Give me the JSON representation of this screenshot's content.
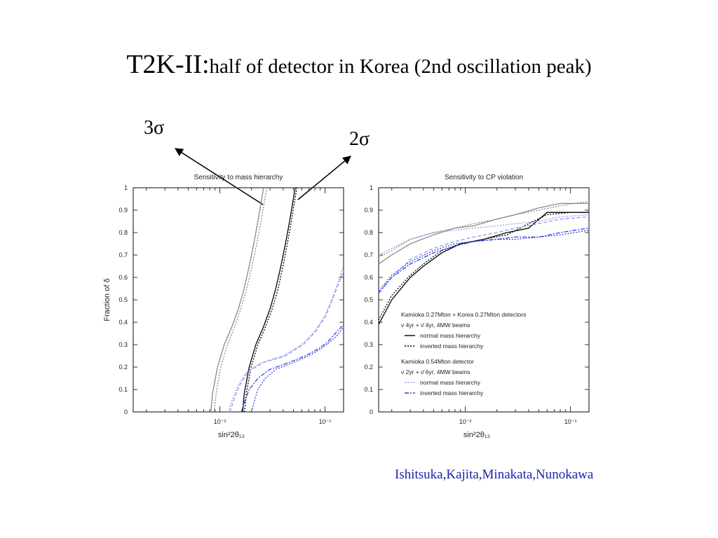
{
  "slide": {
    "title_main": "T2K-II:",
    "title_rest": "half of detector in Korea (2nd oscillation peak)",
    "sigma3": "3σ",
    "sigma2": "2σ",
    "credit": "Ishitsuka,Kajita,Minakata,Nunokawa"
  },
  "colors": {
    "black": "#000000",
    "gray": "#888888",
    "blue": "#2f3fdd",
    "lightblue": "#8f99f2"
  },
  "chart_data": [
    {
      "type": "line",
      "title": "Sensitivity to mass hierarchy",
      "xlabel": "sin²2θ₁₃",
      "ylabel": "Fraction of δ",
      "xscale": "log",
      "xlim": [
        0.0015,
        0.15
      ],
      "ylim": [
        0,
        1
      ],
      "yticks": [
        "0",
        "0.1",
        "0.2",
        "0.3",
        "0.4",
        "0.5",
        "0.6",
        "0.7",
        "0.8",
        "0.9",
        "1"
      ],
      "xticks": [
        {
          "value": 0.01,
          "label": "10⁻²"
        },
        {
          "value": 0.1,
          "label": "10⁻¹"
        }
      ],
      "series": [
        {
          "color": "gray",
          "dash": "solid",
          "x": [
            0.0082,
            0.0085,
            0.0095,
            0.011,
            0.013,
            0.015,
            0.017,
            0.019,
            0.021,
            0.023,
            0.025,
            0.026
          ],
          "y": [
            0,
            0.08,
            0.2,
            0.3,
            0.38,
            0.46,
            0.55,
            0.65,
            0.75,
            0.85,
            0.95,
            1.0
          ]
        },
        {
          "color": "gray",
          "dash": "dot",
          "x": [
            0.0088,
            0.0092,
            0.0102,
            0.0118,
            0.0138,
            0.0158,
            0.018,
            0.0202,
            0.0224,
            0.0246,
            0.0268,
            0.028
          ],
          "y": [
            0,
            0.08,
            0.2,
            0.3,
            0.38,
            0.46,
            0.55,
            0.65,
            0.75,
            0.85,
            0.95,
            1.0
          ]
        },
        {
          "color": "black",
          "dash": "solid",
          "x": [
            0.0165,
            0.017,
            0.019,
            0.022,
            0.026,
            0.03,
            0.034,
            0.038,
            0.042,
            0.046,
            0.05,
            0.052
          ],
          "y": [
            0,
            0.08,
            0.2,
            0.3,
            0.38,
            0.46,
            0.55,
            0.65,
            0.75,
            0.85,
            0.95,
            1.0
          ]
        },
        {
          "color": "black",
          "dash": "dot",
          "x": [
            0.0172,
            0.0178,
            0.0198,
            0.023,
            0.0272,
            0.0315,
            0.0358,
            0.0398,
            0.0438,
            0.0478,
            0.0518,
            0.054
          ],
          "y": [
            0,
            0.08,
            0.2,
            0.3,
            0.38,
            0.46,
            0.55,
            0.65,
            0.75,
            0.85,
            0.95,
            1.0
          ]
        },
        {
          "color": "lightblue",
          "dash": "dot",
          "x": [
            0.012,
            0.013,
            0.015,
            0.018,
            0.025,
            0.04,
            0.06,
            0.08,
            0.1,
            0.12,
            0.15
          ],
          "y": [
            0,
            0.05,
            0.12,
            0.18,
            0.22,
            0.25,
            0.3,
            0.36,
            0.43,
            0.52,
            0.65
          ]
        },
        {
          "color": "lightblue",
          "dash": "dash",
          "x": [
            0.0125,
            0.0135,
            0.0155,
            0.0185,
            0.026,
            0.042,
            0.062,
            0.082,
            0.102,
            0.122,
            0.15
          ],
          "y": [
            0,
            0.05,
            0.12,
            0.18,
            0.22,
            0.25,
            0.3,
            0.36,
            0.43,
            0.52,
            0.63
          ]
        },
        {
          "color": "blue",
          "dash": "dashdot",
          "x": [
            0.016,
            0.017,
            0.019,
            0.023,
            0.03,
            0.045,
            0.065,
            0.085,
            0.105,
            0.125,
            0.15
          ],
          "y": [
            0,
            0.04,
            0.1,
            0.15,
            0.19,
            0.22,
            0.25,
            0.28,
            0.31,
            0.35,
            0.39
          ]
        },
        {
          "color": "blue",
          "dash": "dot",
          "x": [
            0.02,
            0.021,
            0.023,
            0.027,
            0.034,
            0.05,
            0.07,
            0.09,
            0.11,
            0.13,
            0.15
          ],
          "y": [
            0,
            0.04,
            0.1,
            0.15,
            0.19,
            0.22,
            0.25,
            0.28,
            0.31,
            0.34,
            0.38
          ]
        }
      ]
    },
    {
      "type": "line",
      "title": "Sensitivity to CP violation",
      "xlabel": "sin²2θ₁₃",
      "ylabel": "",
      "xscale": "log",
      "xlim": [
        0.0015,
        0.15
      ],
      "ylim": [
        0,
        1
      ],
      "yticks": [
        "0",
        "0.1",
        "0.2",
        "0.3",
        "0.4",
        "0.5",
        "0.6",
        "0.7",
        "0.8",
        "0.9",
        "1"
      ],
      "xticks": [
        {
          "value": 0.01,
          "label": "10⁻²"
        },
        {
          "value": 0.1,
          "label": "10⁻¹"
        }
      ],
      "legend": {
        "position": "lower-right",
        "groups": [
          {
            "header": [
              "Kamioka 0.27Mton + Korea 0.27Mton detectors",
              "ν 4yr + ν̄ 4yr, 4MW beams"
            ],
            "items": [
              {
                "label": "normal mass hierarchy",
                "color": "black",
                "dash": "solid"
              },
              {
                "label": "inverted mass hierarchy",
                "color": "black",
                "dash": "dot"
              }
            ]
          },
          {
            "header": [
              "Kamioka 0.54Mton detector",
              "ν 2yr + ν̄ 6yr, 4MW beams"
            ],
            "items": [
              {
                "label": "normal mass hierarchy",
                "color": "lightblue",
                "dash": "dot"
              },
              {
                "label": "inverted mass hierarchy",
                "color": "blue",
                "dash": "dashdot"
              }
            ]
          }
        ]
      },
      "series": [
        {
          "color": "gray",
          "dash": "solid",
          "x": [
            0.0015,
            0.002,
            0.003,
            0.005,
            0.008,
            0.012,
            0.02,
            0.03,
            0.05,
            0.08,
            0.15
          ],
          "y": [
            0.66,
            0.7,
            0.75,
            0.79,
            0.82,
            0.83,
            0.86,
            0.88,
            0.91,
            0.93,
            0.93
          ]
        },
        {
          "color": "gray",
          "dash": "dot",
          "x": [
            0.0015,
            0.002,
            0.003,
            0.005,
            0.008,
            0.012,
            0.02,
            0.03,
            0.05,
            0.08,
            0.15
          ],
          "y": [
            0.69,
            0.72,
            0.77,
            0.8,
            0.82,
            0.84,
            0.86,
            0.88,
            0.9,
            0.92,
            0.94
          ]
        },
        {
          "color": "black",
          "dash": "solid",
          "x": [
            0.0015,
            0.002,
            0.003,
            0.004,
            0.006,
            0.009,
            0.015,
            0.025,
            0.04,
            0.06,
            0.1,
            0.15
          ],
          "y": [
            0.39,
            0.5,
            0.6,
            0.65,
            0.71,
            0.75,
            0.77,
            0.8,
            0.82,
            0.89,
            0.89,
            0.89
          ]
        },
        {
          "color": "black",
          "dash": "dot",
          "x": [
            0.0015,
            0.002,
            0.003,
            0.004,
            0.006,
            0.009,
            0.015,
            0.025,
            0.04,
            0.06,
            0.1,
            0.15
          ],
          "y": [
            0.41,
            0.52,
            0.61,
            0.66,
            0.72,
            0.75,
            0.77,
            0.79,
            0.84,
            0.88,
            0.89,
            0.89
          ]
        },
        {
          "color": "lightblue",
          "dash": "dot",
          "x": [
            0.0015,
            0.002,
            0.003,
            0.005,
            0.008,
            0.012,
            0.02,
            0.03,
            0.05,
            0.08,
            0.15
          ],
          "y": [
            0.7,
            0.73,
            0.77,
            0.8,
            0.81,
            0.82,
            0.83,
            0.84,
            0.85,
            0.87,
            0.88
          ]
        },
        {
          "color": "lightblue",
          "dash": "dash",
          "x": [
            0.0015,
            0.002,
            0.003,
            0.005,
            0.008,
            0.012,
            0.02,
            0.03,
            0.05,
            0.08,
            0.15
          ],
          "y": [
            0.53,
            0.6,
            0.68,
            0.73,
            0.76,
            0.78,
            0.8,
            0.82,
            0.84,
            0.86,
            0.87
          ]
        },
        {
          "color": "blue",
          "dash": "dashdot",
          "x": [
            0.0015,
            0.002,
            0.003,
            0.005,
            0.008,
            0.012,
            0.02,
            0.03,
            0.05,
            0.08,
            0.15
          ],
          "y": [
            0.53,
            0.6,
            0.66,
            0.71,
            0.74,
            0.76,
            0.77,
            0.78,
            0.78,
            0.8,
            0.82
          ]
        },
        {
          "color": "blue",
          "dash": "dot",
          "x": [
            0.0015,
            0.002,
            0.003,
            0.005,
            0.008,
            0.012,
            0.02,
            0.03,
            0.05,
            0.08,
            0.15
          ],
          "y": [
            0.54,
            0.61,
            0.67,
            0.72,
            0.75,
            0.76,
            0.77,
            0.77,
            0.78,
            0.79,
            0.81
          ]
        }
      ]
    }
  ]
}
